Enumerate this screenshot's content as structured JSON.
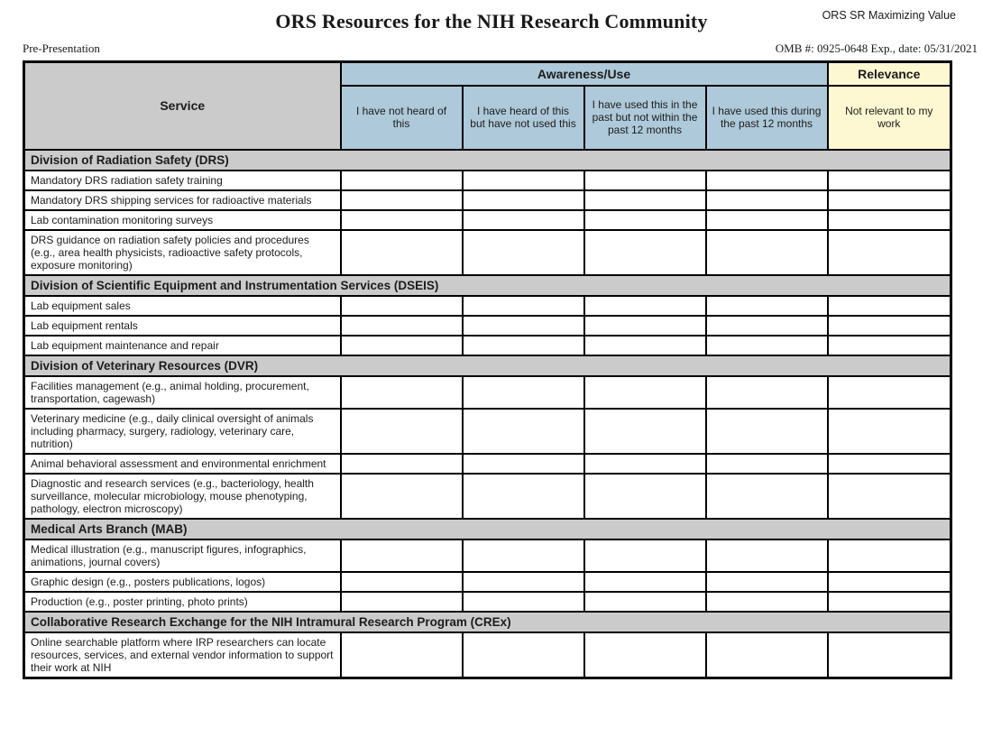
{
  "header": {
    "title": "ORS Resources for the NIH Research Community",
    "corner_label": "ORS SR Maximizing Value",
    "pre_presentation": "Pre-Presentation",
    "omb": "OMB #: 0925-0648 Exp., date: 05/31/2021"
  },
  "table": {
    "service_header": "Service",
    "group_headers": {
      "awareness": "Awareness/Use",
      "relevance": "Relevance"
    },
    "response_columns": [
      {
        "label": "I have not heard of this",
        "group": "awareness"
      },
      {
        "label": "I have heard of this but have not used this",
        "group": "awareness"
      },
      {
        "label": "I have used this in the past but not within the past 12 months",
        "group": "awareness"
      },
      {
        "label": "I have used this during the past 12 months",
        "group": "awareness"
      },
      {
        "label": "Not relevant to my work",
        "group": "relevance"
      }
    ],
    "sections": [
      {
        "title": "Division of Radiation Safety (DRS)",
        "rows": [
          "Mandatory DRS radiation safety training",
          "Mandatory DRS shipping services for radioactive materials",
          "Lab contamination monitoring surveys",
          "DRS guidance on radiation safety policies and procedures (e.g., area health physicists, radioactive safety protocols, exposure monitoring)"
        ]
      },
      {
        "title": "Division of Scientific Equipment and Instrumentation Services (DSEIS)",
        "rows": [
          "Lab equipment sales",
          "Lab equipment rentals",
          "Lab equipment maintenance and repair"
        ]
      },
      {
        "title": "Division of Veterinary Resources (DVR)",
        "rows": [
          "Facilities management (e.g., animal holding, procurement, transportation, cagewash)",
          "Veterinary medicine (e.g., daily clinical oversight of animals including pharmacy, surgery, radiology, veterinary care, nutrition)",
          "Animal behavioral assessment and environmental enrichment",
          "Diagnostic and research services (e.g., bacteriology, health surveillance, molecular microbiology, mouse phenotyping, pathology, electron microscopy)"
        ]
      },
      {
        "title": "Medical Arts Branch (MAB)",
        "rows": [
          "Medical illustration (e.g., manuscript figures, infographics, animations, journal covers)",
          "Graphic design (e.g., posters publications, logos)",
          "Production (e.g., poster printing, photo prints)"
        ]
      },
      {
        "title": "Collaborative Research Exchange for the NIH Intramural Research Program (CREx)",
        "rows": [
          "Online searchable platform where IRP researchers can locate resources, services, and external vendor information to support their work at NIH"
        ]
      }
    ]
  },
  "colors": {
    "awareness_header_bg": "#aec9d9",
    "relevance_header_bg": "#fdf8d2",
    "section_header_bg": "#cbcbcb",
    "service_header_bg": "#cbcbcb",
    "border": "#000000"
  }
}
